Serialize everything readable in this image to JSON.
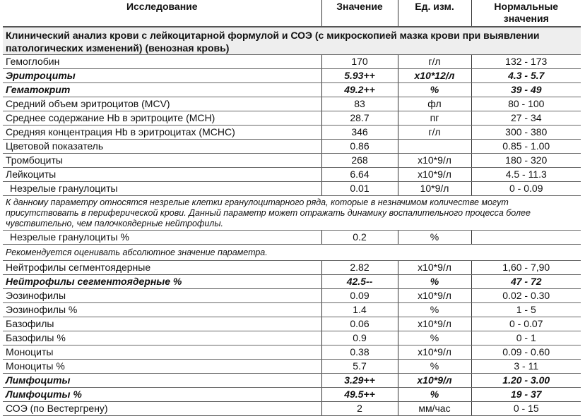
{
  "headers": {
    "test": "Исследование",
    "value": "Значение",
    "unit": "Ед. изм.",
    "norm": "Нормальные значения"
  },
  "section": "Клинический анализ крови с лейкоцитарной формулой и СОЭ (с микроскопией мазка крови при выявлении патологических изменений) (венозная кровь)",
  "rows": [
    {
      "name": "Гемоглобин",
      "value": "170",
      "unit": "г/л",
      "norm": "132 - 173"
    },
    {
      "name": "Эритроциты",
      "value": "5.93++",
      "unit": "x10*12/л",
      "norm": "4.3 - 5.7",
      "flag": true
    },
    {
      "name": "Гематокрит",
      "value": "49.2++",
      "unit": "%",
      "norm": "39 - 49",
      "flag": true
    },
    {
      "name": "Средний объем эритроцитов (MCV)",
      "value": "83",
      "unit": "фл",
      "norm": "80 - 100"
    },
    {
      "name": "Среднее содержание Hb в эритроците (MCH)",
      "value": "28.7",
      "unit": "пг",
      "norm": "27 - 34"
    },
    {
      "name": "Средняя концентрация Hb в эритроцитах (MCHC)",
      "value": "346",
      "unit": "г/л",
      "norm": "300 - 380"
    },
    {
      "name": "Цветовой показатель",
      "value": "0.86",
      "unit": "",
      "norm": "0.85 - 1.00"
    },
    {
      "name": "Тромбоциты",
      "value": "268",
      "unit": "x10*9/л",
      "norm": "180 - 320"
    },
    {
      "name": "Лейкоциты",
      "value": "6.64",
      "unit": "x10*9/л",
      "norm": "4.5 - 11.3"
    },
    {
      "name": "Незрелые гранулоциты",
      "value": "0.01",
      "unit": "10*9/л",
      "norm": "0 - 0.09",
      "indent": true
    },
    {
      "note": "К данному параметру относятся незрелые клетки гранулоцитарного ряда, которые  в незначимом количестве могут присутствовать в периферической крови. Данный параметр может отражать динамику воспалительного процесса более чувствительно, чем палочкоядерные нейтрофилы."
    },
    {
      "name": "Незрелые гранулоциты %",
      "value": "0.2",
      "unit": "%",
      "norm": "",
      "indent": true
    },
    {
      "note": "Рекомендуется оценивать абсолютное значение параметра."
    },
    {
      "name": "Нейтрофилы сегментоядерные",
      "value": "2.82",
      "unit": "x10*9/л",
      "norm": "1,60 - 7,90"
    },
    {
      "name": "Нейтрофилы сегментоядерные %",
      "value": "42.5--",
      "unit": "%",
      "norm": "47 - 72",
      "flag": true
    },
    {
      "name": "Эозинофилы",
      "value": "0.09",
      "unit": "x10*9/л",
      "norm": "0.02 - 0.30"
    },
    {
      "name": "Эозинофилы %",
      "value": "1.4",
      "unit": "%",
      "norm": "1 - 5"
    },
    {
      "name": "Базофилы",
      "value": "0.06",
      "unit": "x10*9/л",
      "norm": "0 - 0.07"
    },
    {
      "name": "Базофилы %",
      "value": "0.9",
      "unit": "%",
      "norm": "0 - 1"
    },
    {
      "name": "Моноциты",
      "value": "0.38",
      "unit": "x10*9/л",
      "norm": "0.09 - 0.60"
    },
    {
      "name": "Моноциты %",
      "value": "5.7",
      "unit": "%",
      "norm": "3 - 11"
    },
    {
      "name": "Лимфоциты",
      "value": "3.29++",
      "unit": "x10*9/л",
      "norm": "1.20 - 3.00",
      "flag": true
    },
    {
      "name": "Лимфоциты %",
      "value": "49.5++",
      "unit": "%",
      "norm": "19 - 37",
      "flag": true
    },
    {
      "name": "СОЭ (по Вестергрену)",
      "value": "2",
      "unit": "мм/час",
      "norm": "0 - 15"
    }
  ]
}
